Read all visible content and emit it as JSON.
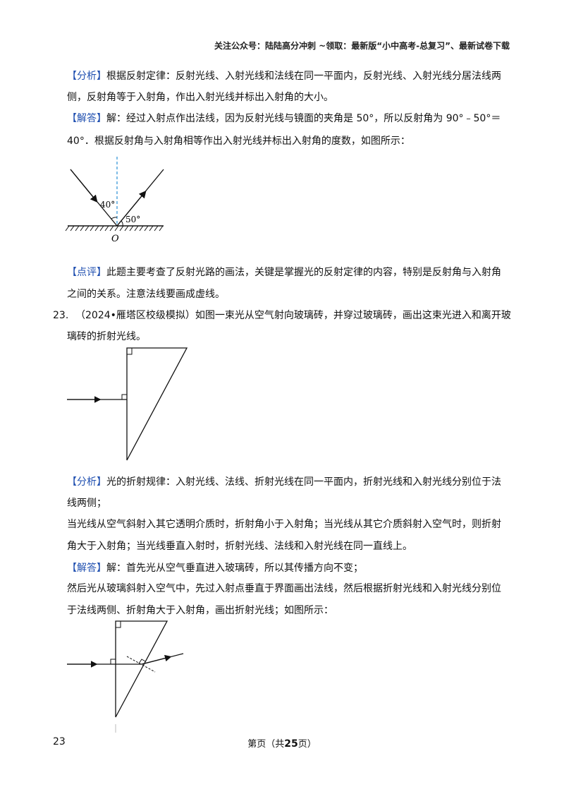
{
  "header": {
    "text": "关注公众号：陆陆高分冲刺 ~领取：最新版“小中高考-总复习”、最新试卷下载"
  },
  "q22": {
    "analysis_tag": "【分析】",
    "analysis_l1": "根据反射定律：反射光线、入射光线和法线在同一平面内，反射光线、入射光线分居法线两",
    "analysis_l2": "侧，反射角等于入射角，作出入射光线并标出入射角的大小。",
    "answer_tag": "【解答】",
    "answer_l1": "解：经过入射点作出法线，因为反射光线与镜面的夹角是 50°，所以反射角为 90°﹣50°＝",
    "answer_l2": "40°．根据反射角与入射角相等作出入射光线并标出入射角的度数，如图所示：",
    "fig": {
      "angle1": "40°",
      "angle2": "50°",
      "point": "O"
    },
    "comment_tag": "【点评】",
    "comment_l1": "此题主要考查了反射光路的画法，关键是掌握光的反射定律的内容，特别是反射角与入射角",
    "comment_l2": "之间的关系。注意法线要画成虚线。"
  },
  "q23": {
    "number": "23.",
    "stem_l1": "（2024•雁塔区校级模拟）如图一束光从空气射向玻璃砖，并穿过玻璃砖，画出这束光进入和离开玻",
    "stem_l2": "璃砖的折射光线。",
    "analysis_tag": "【分析】",
    "analysis_l1": "光的折射规律：入射光线、法线、折射光线在同一平面内，折射光线和入射光线分别位于法",
    "analysis_l2": "线两侧；",
    "analysis_l3": "当光线从空气斜射入其它透明介质时，折射角小于入射角；当光线从其它介质斜射入空气时，则折射",
    "analysis_l4": "角大于入射角；当光线垂直入射时，折射光线、法线和入射光线在同一直线上。",
    "answer_tag": "【解答】",
    "answer_l1": "解：首先光从空气垂直进入玻璃砖，所以其传播方向不变；",
    "answer_l2": "然后光从玻璃斜射入空气中，先过入射点垂直于界面画出法线，然后根据折射光线和入射光线分别位",
    "answer_l3": "于法线两侧、折射角大于入射角，画出折射光线；如图所示："
  },
  "footer": {
    "page_number": "23",
    "page_prefix": "第页（共",
    "total_pages": "25",
    "page_suffix": "页）"
  }
}
